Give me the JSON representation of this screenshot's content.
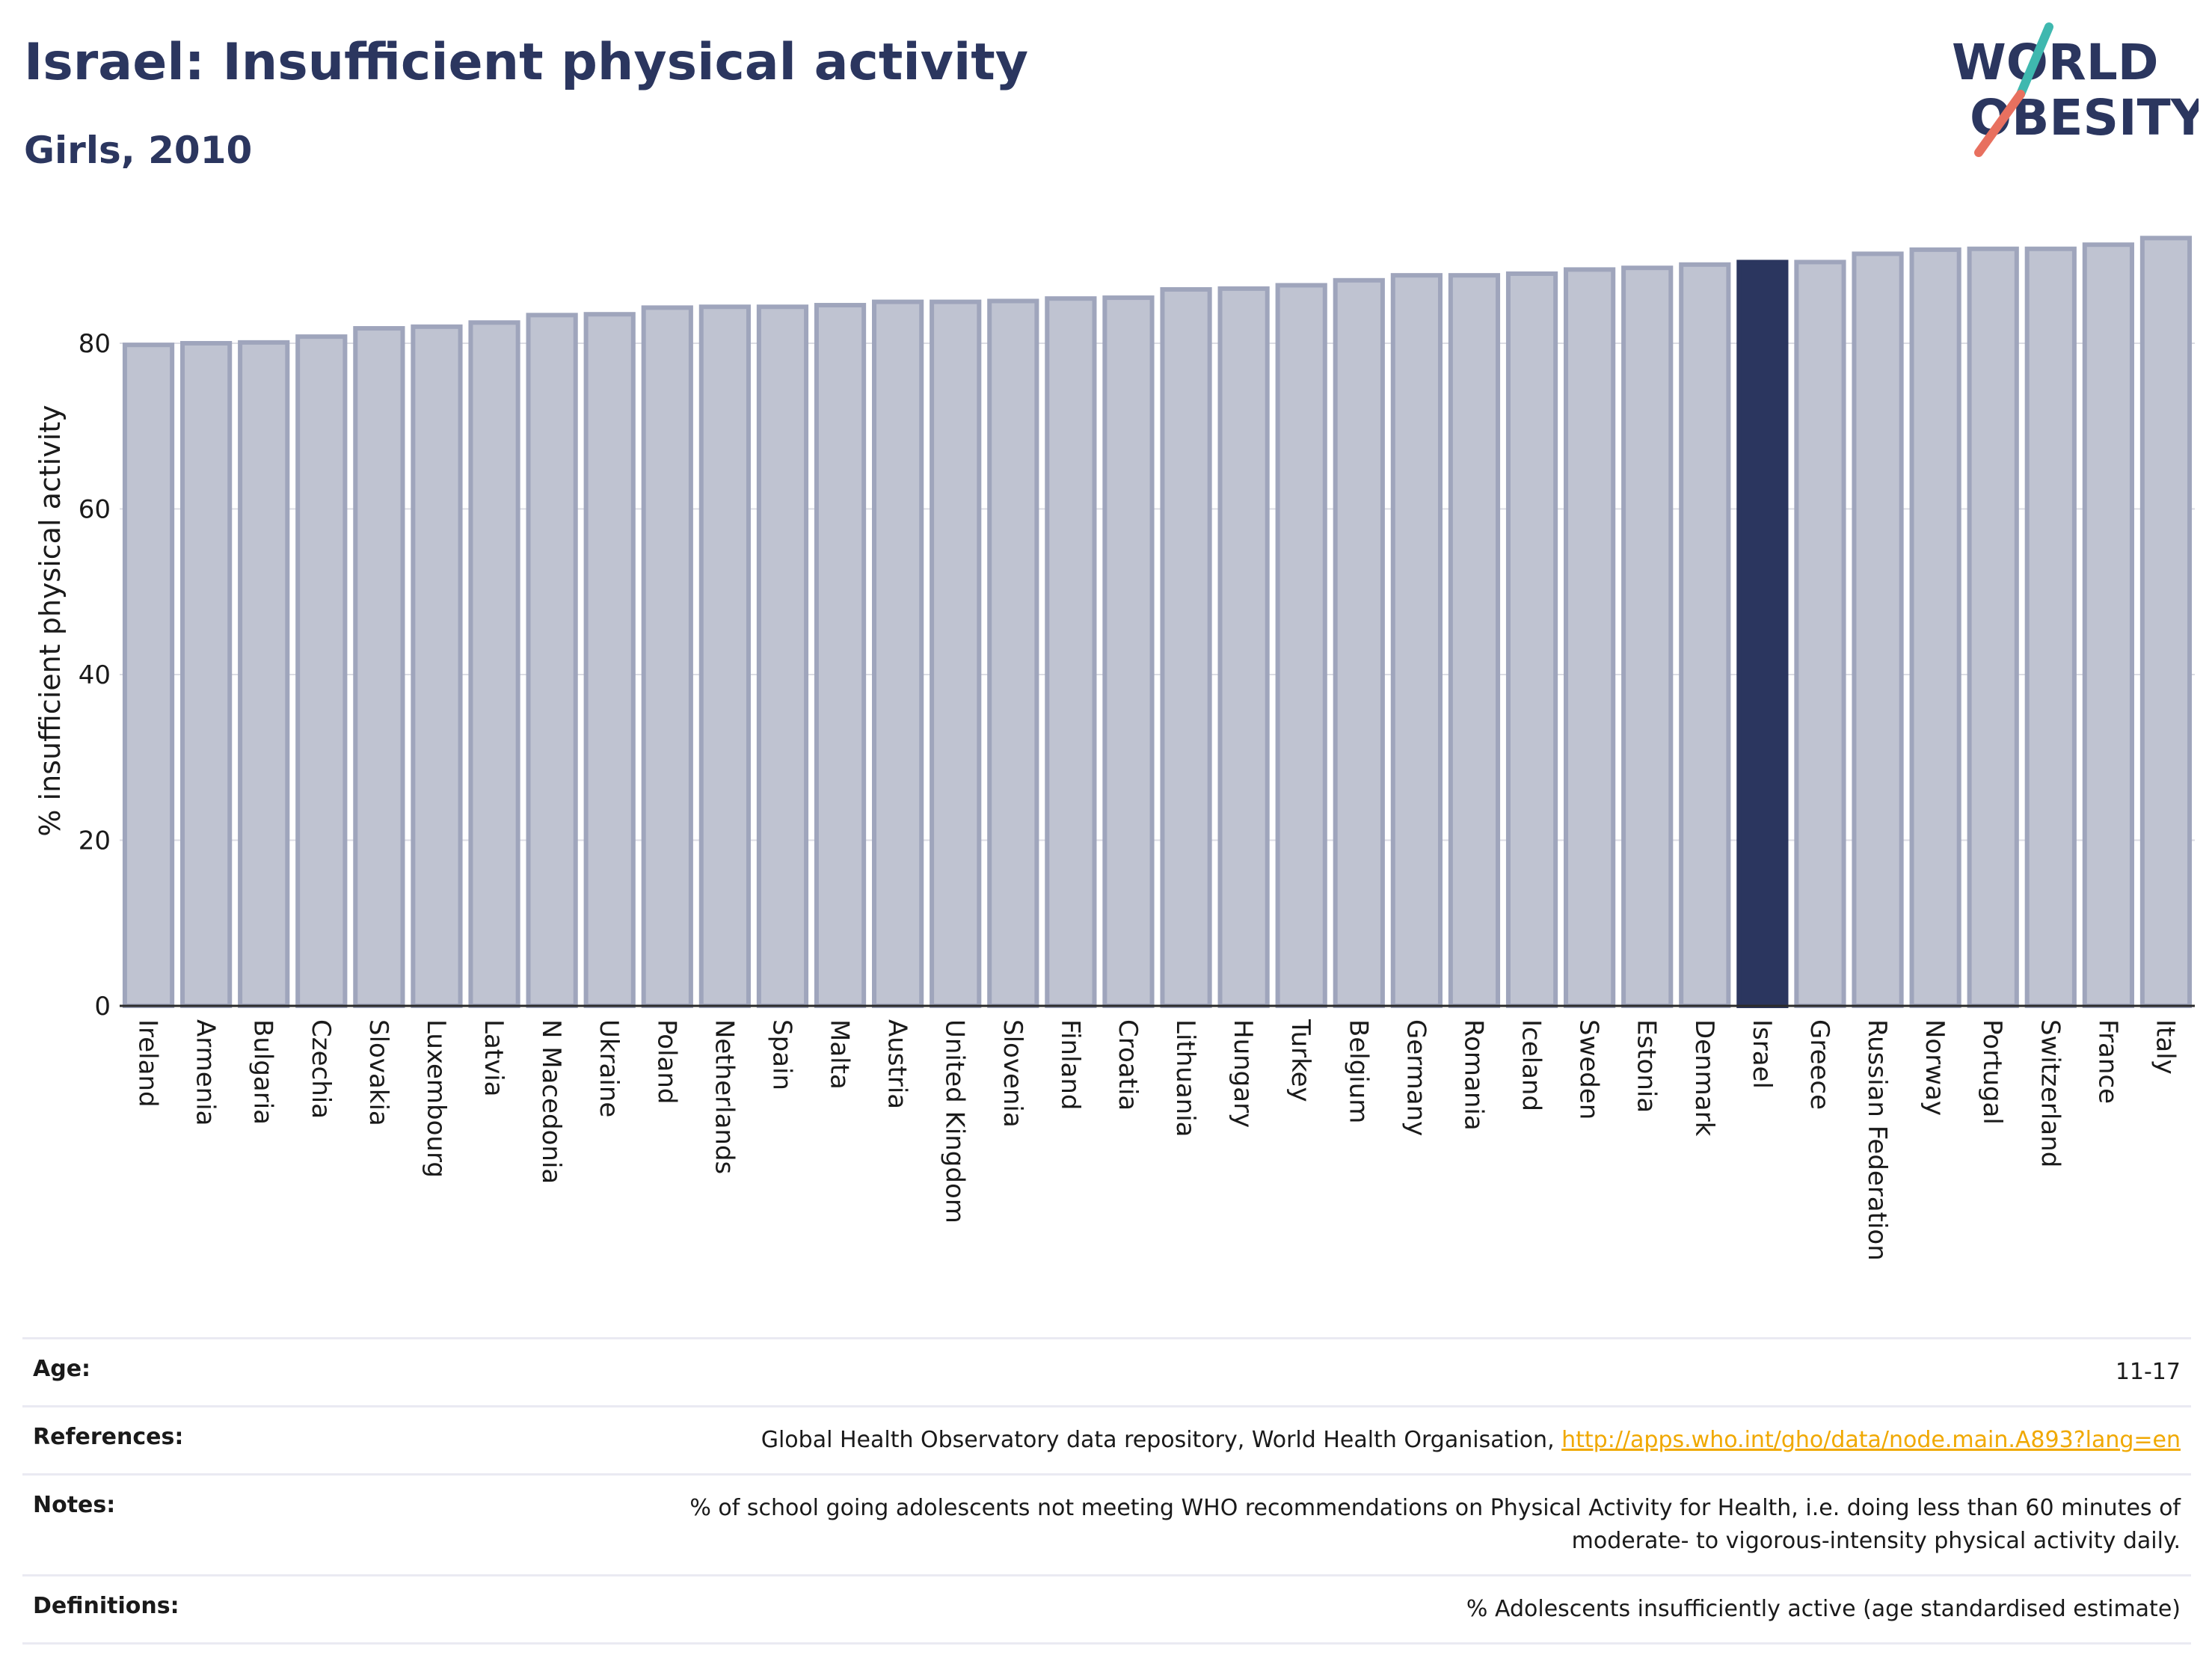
{
  "header": {
    "title": "Israel: Insufficient physical activity",
    "subtitle": "Girls, 2010"
  },
  "logo": {
    "line1": "WORLD",
    "line2": "OBESITY"
  },
  "colors": {
    "highlight": "#2b365f",
    "bar_fill": "#bfc3d1",
    "bar_stroke": "#9fa5bc",
    "logo_teal": "#3fb8af",
    "logo_red": "#e8705f"
  },
  "chart_data": {
    "type": "bar",
    "ylabel": "% insufficient physical activity",
    "ylim": [
      0,
      93
    ],
    "yticks": [
      0,
      20,
      40,
      60,
      80
    ],
    "grid": true,
    "highlight": "Israel",
    "categories": [
      "Ireland",
      "Armenia",
      "Bulgaria",
      "Czechia",
      "Slovakia",
      "Luxembourg",
      "Latvia",
      "N Macedonia",
      "Ukraine",
      "Poland",
      "Netherlands",
      "Spain",
      "Malta",
      "Austria",
      "United Kingdom",
      "Slovenia",
      "Finland",
      "Croatia",
      "Lithuania",
      "Hungary",
      "Turkey",
      "Belgium",
      "Germany",
      "Romania",
      "Iceland",
      "Sweden",
      "Estonia",
      "Denmark",
      "Israel",
      "Greece",
      "Russian Federation",
      "Norway",
      "Portugal",
      "Switzerland",
      "France",
      "Italy"
    ],
    "values": [
      79.8,
      80.0,
      80.1,
      80.8,
      81.8,
      82.0,
      82.5,
      83.4,
      83.5,
      84.3,
      84.4,
      84.4,
      84.6,
      85.0,
      85.0,
      85.1,
      85.4,
      85.5,
      86.5,
      86.6,
      87.0,
      87.6,
      88.2,
      88.2,
      88.4,
      88.9,
      89.1,
      89.5,
      89.8,
      89.8,
      90.8,
      91.3,
      91.4,
      91.4,
      91.9,
      92.7
    ]
  },
  "info": {
    "age_label": "Age:",
    "age_value": "11-17",
    "references_label": "References:",
    "references_text": "Global Health Observatory data repository, World Health Organisation, ",
    "references_link": "http://apps.who.int/gho/data/node.main.A893?lang=en",
    "notes_label": "Notes:",
    "notes_line1": "% of school going adolescents not meeting WHO recommendations on Physical Activity for Health, i.e. doing less than 60 minutes of",
    "notes_line2": "moderate- to vigorous-intensity physical activity daily.",
    "definitions_label": "Definitions:",
    "definitions_value": "% Adolescents insufficiently active (age standardised estimate)"
  }
}
